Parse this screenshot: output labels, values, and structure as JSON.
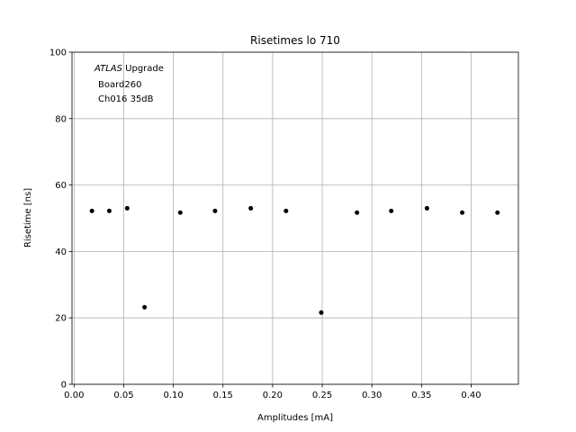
{
  "chart_data": {
    "type": "scatter",
    "title": "Risetimes lo 710",
    "xlabel": "Amplitudes [mA]",
    "ylabel": "Risetime [ns]",
    "xlim": [
      -0.0021,
      0.4476
    ],
    "ylim": [
      0,
      100
    ],
    "grid": true,
    "marker_color": "#000000",
    "x_ticks": [
      "0.00",
      "0.05",
      "0.10",
      "0.15",
      "0.20",
      "0.25",
      "0.30",
      "0.35",
      "0.40"
    ],
    "x_tick_values": [
      0.0,
      0.05,
      0.1,
      0.15,
      0.2,
      0.25,
      0.3,
      0.35,
      0.4
    ],
    "y_ticks": [
      "0",
      "20",
      "40",
      "60",
      "80",
      "100"
    ],
    "y_tick_values": [
      0,
      20,
      40,
      60,
      80,
      100
    ],
    "annotation": {
      "line1_italic": "ATLAS",
      "line1_rest": " Upgrade",
      "line2": "Board260",
      "line3": "Ch016 35dB"
    },
    "series": [
      {
        "x": [
          0.018,
          0.0355,
          0.0535,
          0.071,
          0.107,
          0.142,
          0.178,
          0.2135,
          0.249,
          0.285,
          0.3195,
          0.3555,
          0.391,
          0.4265
        ],
        "y": [
          52.2,
          52.2,
          53.0,
          23.2,
          51.7,
          52.2,
          53.0,
          52.2,
          21.6,
          51.7,
          52.2,
          53.0,
          51.7,
          51.7
        ]
      }
    ]
  }
}
